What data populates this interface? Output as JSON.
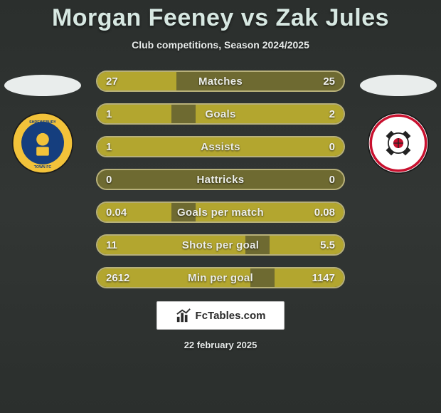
{
  "header": {
    "title": "Morgan Feeney vs Zak Jules",
    "subtitle": "Club competitions, Season 2024/2025"
  },
  "players": {
    "left": {
      "name": "Morgan Feeney",
      "club": "Shrewsbury Town"
    },
    "right": {
      "name": "Zak Jules",
      "club": "Rotherham United"
    }
  },
  "club_badges": {
    "left": {
      "ring_color": "#f2c23a",
      "inner_color": "#153e7e",
      "text_color": "#ffffff",
      "text": "SHREWSBURY TOWN"
    },
    "right": {
      "bg_color": "#ffffff",
      "accent_color": "#c8102e",
      "cross_color": "#222222"
    }
  },
  "chart": {
    "bar_bg": "#6e6a31",
    "bar_border": "#b7b07a",
    "bar_fill": "#b3a62f",
    "label_color": "#eceee9",
    "value_color": "#f2f3f1",
    "label_fontsize": 15,
    "value_fontsize": 15,
    "rows": [
      {
        "label": "Matches",
        "left": "27",
        "right": "25",
        "fill_left_pct": 32,
        "fill_right_pct": 0
      },
      {
        "label": "Goals",
        "left": "1",
        "right": "2",
        "fill_left_pct": 30,
        "fill_right_pct": 60
      },
      {
        "label": "Assists",
        "left": "1",
        "right": "0",
        "fill_left_pct": 100,
        "fill_right_pct": 0
      },
      {
        "label": "Hattricks",
        "left": "0",
        "right": "0",
        "fill_left_pct": 0,
        "fill_right_pct": 0
      },
      {
        "label": "Goals per match",
        "left": "0.04",
        "right": "0.08",
        "fill_left_pct": 30,
        "fill_right_pct": 60
      },
      {
        "label": "Shots per goal",
        "left": "11",
        "right": "5.5",
        "fill_left_pct": 60,
        "fill_right_pct": 30
      },
      {
        "label": "Min per goal",
        "left": "2612",
        "right": "1147",
        "fill_left_pct": 62,
        "fill_right_pct": 28
      }
    ]
  },
  "footer": {
    "logo_text": "FcTables.com",
    "date": "22 february 2025"
  },
  "colors": {
    "bg_top": "#2b2f2d",
    "bg_mid": "#323634",
    "title_color": "#d7e8e2",
    "subtitle_color": "#e8eceb",
    "ellipse_color": "#e9edec"
  }
}
